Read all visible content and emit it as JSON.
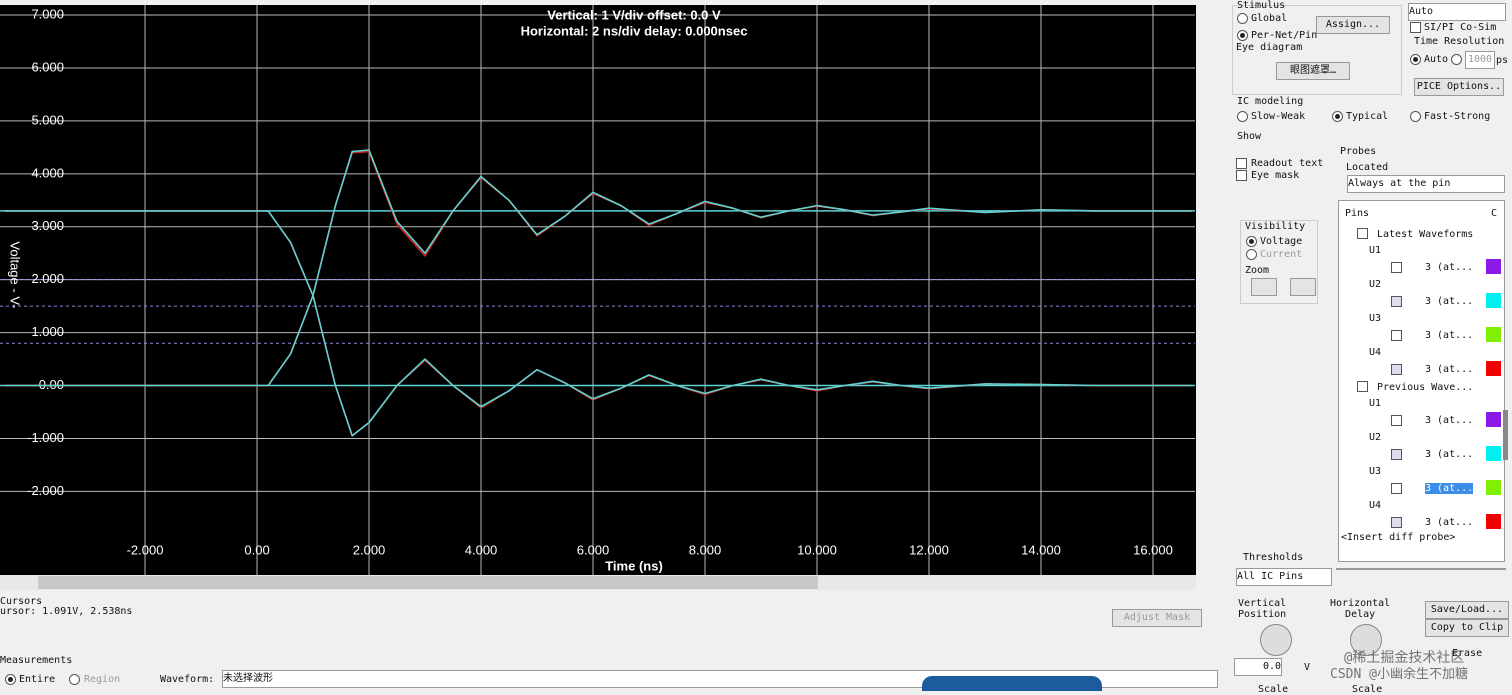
{
  "chart_data": {
    "type": "line",
    "title": "Vertical: 1  V/div  offset: 0.0 V",
    "subtitle": "Horizontal: 2 ns/div  delay: 0.000nsec",
    "x_label": "Time  (ns)",
    "y_label": "Voltage - V-",
    "xlim": [
      -4.59,
      16.75
    ],
    "ylim": [
      -3.58,
      7.19
    ],
    "xticks": [
      {
        "value": -2,
        "label": "-2.000"
      },
      {
        "value": 0,
        "label": "0.00"
      },
      {
        "value": 2,
        "label": "2.000"
      },
      {
        "value": 4,
        "label": "4.000"
      },
      {
        "value": 6,
        "label": "6.000"
      },
      {
        "value": 8,
        "label": "8.000"
      },
      {
        "value": 10,
        "label": "10.000"
      },
      {
        "value": 12,
        "label": "12.000"
      },
      {
        "value": 14,
        "label": "14.000"
      },
      {
        "value": 16,
        "label": "16.000"
      }
    ],
    "yticks": [
      {
        "value": 7,
        "label": "7.000"
      },
      {
        "value": 6,
        "label": "6.000"
      },
      {
        "value": 5,
        "label": "5.000"
      },
      {
        "value": 4,
        "label": "4.000"
      },
      {
        "value": 3,
        "label": "3.000"
      },
      {
        "value": 2,
        "label": "2.000"
      },
      {
        "value": 1,
        "label": "1.000"
      },
      {
        "value": 0,
        "label": "0.00"
      },
      {
        "value": -1,
        "label": "-1.000"
      },
      {
        "value": -2,
        "label": "-2.000"
      }
    ],
    "grid": true,
    "x": [
      -4.5,
      0,
      0.2,
      0.6,
      1.0,
      1.4,
      1.7,
      2.0,
      2.5,
      3.0,
      3.5,
      4.0,
      4.5,
      5.0,
      5.5,
      6.0,
      6.5,
      7.0,
      7.5,
      8.0,
      8.5,
      9.0,
      9.5,
      10.0,
      10.5,
      11.0,
      11.5,
      12.0,
      13.0,
      14.0,
      15.0,
      16.7
    ],
    "series": [
      {
        "color": "#d42020",
        "values": [
          0,
          0,
          0,
          0.6,
          1.7,
          3.4,
          4.4,
          4.42,
          3.05,
          2.45,
          3.3,
          3.93,
          3.5,
          2.83,
          3.2,
          3.63,
          3.4,
          3.03,
          3.25,
          3.46,
          3.35,
          3.17,
          3.3,
          3.39,
          3.32,
          3.21,
          3.28,
          3.34,
          3.27,
          3.32,
          3.3,
          3.3
        ]
      },
      {
        "color": "#d42020",
        "values": [
          3.3,
          3.3,
          3.3,
          2.7,
          1.7,
          0.0,
          -0.95,
          -0.7,
          0.0,
          0.48,
          0.0,
          -0.42,
          -0.1,
          0.3,
          0.05,
          -0.27,
          -0.05,
          0.19,
          0.0,
          -0.17,
          0.0,
          0.11,
          0.0,
          -0.1,
          0.0,
          0.07,
          0.0,
          -0.06,
          0.03,
          0.02,
          0.0,
          0.0
        ]
      },
      {
        "color": "#5fd3d3",
        "values": [
          0,
          0,
          0,
          0.6,
          1.7,
          3.4,
          4.42,
          4.45,
          3.1,
          2.5,
          3.3,
          3.95,
          3.5,
          2.85,
          3.2,
          3.65,
          3.4,
          3.05,
          3.25,
          3.48,
          3.35,
          3.18,
          3.3,
          3.4,
          3.32,
          3.22,
          3.28,
          3.35,
          3.27,
          3.32,
          3.3,
          3.3
        ]
      },
      {
        "color": "#5fd3d3",
        "values": [
          3.3,
          3.3,
          3.3,
          2.7,
          1.7,
          0.0,
          -0.95,
          -0.7,
          0.0,
          0.5,
          0.0,
          -0.4,
          -0.1,
          0.3,
          0.05,
          -0.25,
          -0.05,
          0.2,
          0.0,
          -0.15,
          0.0,
          0.12,
          0.0,
          -0.08,
          0.0,
          0.08,
          0.0,
          -0.05,
          0.03,
          0.02,
          0.0,
          0.0
        ]
      }
    ],
    "hlines": [
      {
        "value": 3.3,
        "color": "#5fd3d3"
      },
      {
        "value": 0,
        "color": "#5fd3d3"
      }
    ],
    "dashed_lines": [
      {
        "value": 2.0,
        "color": "#8a8ae0"
      },
      {
        "value": 1.5,
        "color": "#8a8ae0"
      },
      {
        "value": 0.8,
        "color": "#8a8ae0"
      }
    ]
  },
  "ui": {
    "stimulus": {
      "title": "Stimulus",
      "global": "Global",
      "per_net": "Per-Net/Pin",
      "assign": "Assign...",
      "eye": "Eye diagram",
      "eye_mask": "眼图遮罩…"
    },
    "sim": {
      "auto_select": "Auto",
      "cosim": "SI/PI Co-Sim",
      "time_res": "Time Resolution",
      "auto": "Auto",
      "res_value": "1000",
      "res_unit": "ps",
      "pice": "PICE Options.."
    },
    "ic": {
      "title": "IC modeling",
      "slow": "Slow-Weak",
      "typical": "Typical",
      "fast": "Fast-Strong"
    },
    "show": {
      "title": "Show",
      "readout": "Readout text",
      "eye_mask": "Eye mask",
      "probes": "Probes",
      "located": "Located",
      "located_value": "Always at the pin"
    },
    "visibility": {
      "title": "Visibility",
      "voltage": "Voltage",
      "current": "Current",
      "zoom": "Zoom"
    },
    "pins": {
      "header": "Pins",
      "col": "C",
      "insert": "<Insert diff probe>",
      "groups": [
        {
          "label": "Latest Waveforms",
          "items": [
            {
              "part": "U1",
              "pin": "3 (at...",
              "checked": false,
              "color": "#8b1ae6"
            },
            {
              "part": "U2",
              "pin": "3 (at...",
              "checked": true,
              "color": "#00f0f0"
            },
            {
              "part": "U3",
              "pin": "3 (at...",
              "checked": false,
              "color": "#80f000"
            },
            {
              "part": "U4",
              "pin": "3 (at...",
              "checked": true,
              "color": "#f00000"
            }
          ]
        },
        {
          "label": "Previous Wave...",
          "items": [
            {
              "part": "U1",
              "pin": "3 (at...",
              "checked": false,
              "color": "#8b1ae6"
            },
            {
              "part": "U2",
              "pin": "3 (at...",
              "checked": true,
              "color": "#00f0f0"
            },
            {
              "part": "U3",
              "pin": "3 (at...",
              "checked": false,
              "color": "#80f000"
            },
            {
              "part": "U4",
              "pin": "3 (at...",
              "checked": true,
              "color": "#f00000"
            }
          ]
        }
      ]
    },
    "thresholds": {
      "title": "Thresholds",
      "value": "All IC Pins"
    },
    "cursors": {
      "title": "Cursors",
      "readout": "ursor: 1.091V, 2.538ns",
      "adjust": "Adjust Mask"
    },
    "measurements": {
      "title": "Measurements",
      "entire": "Entire",
      "region": "Region",
      "waveform": "Waveform:",
      "waveform_value": "未选择波形"
    },
    "controls": {
      "vpos": "Vertical\nPosition",
      "vpos_value": "0.0",
      "vpos_unit": "V",
      "hdelay": "Horizontal\nDelay",
      "save": "Save/Load...",
      "copy": "Copy to Clip",
      "erase": "Erase",
      "scale1": "Scale",
      "scale2": "Scale"
    },
    "watermark": {
      "line1": "@稀土掘金技术社区",
      "line2": "CSDN @小幽余生不加糖"
    }
  }
}
